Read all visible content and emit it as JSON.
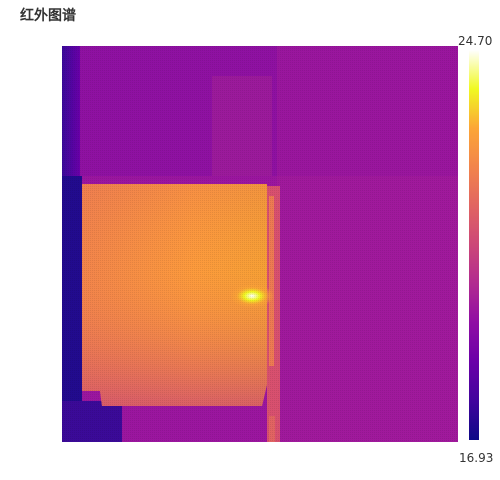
{
  "title": "红外图谱",
  "scale": {
    "max_label": "24.70",
    "min_label": "16.93",
    "max_value": 24.7,
    "min_value": 16.93
  },
  "colors": {
    "colormap": [
      "#0d0887",
      "#41049d",
      "#6a00a8",
      "#8f0da4",
      "#b12a90",
      "#cc4778",
      "#e16462",
      "#f2844b",
      "#fca636",
      "#fcce25",
      "#f0f921",
      "#ffffff"
    ],
    "background": "#ffffff"
  }
}
